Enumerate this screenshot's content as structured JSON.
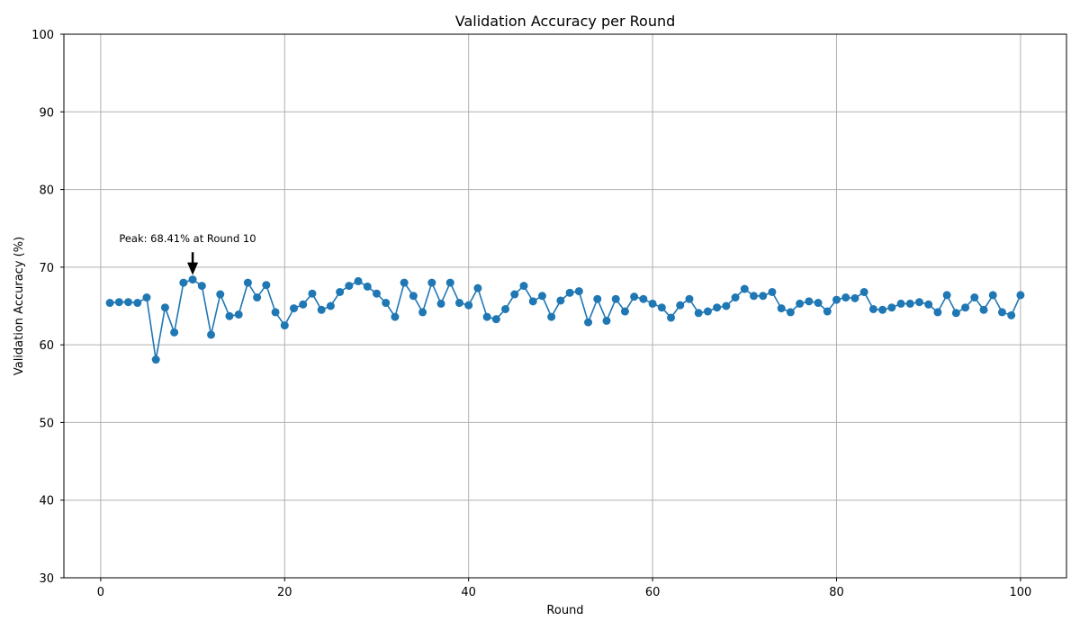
{
  "chart_data": {
    "type": "line",
    "title": "Validation Accuracy per Round",
    "xlabel": "Round",
    "ylabel": "Validation Accuracy (%)",
    "xlim": [
      -4,
      105
    ],
    "ylim": [
      30,
      100
    ],
    "xticks": [
      0,
      20,
      40,
      60,
      80,
      100
    ],
    "yticks": [
      30,
      40,
      50,
      60,
      70,
      80,
      90,
      100
    ],
    "xtick_labels": [
      "0",
      "20",
      "40",
      "60",
      "80",
      "100"
    ],
    "ytick_labels": [
      "30",
      "40",
      "50",
      "60",
      "70",
      "80",
      "90",
      "100"
    ],
    "grid": true,
    "series_color": "#1f77b4",
    "x": [
      1,
      2,
      3,
      4,
      5,
      6,
      7,
      8,
      9,
      10,
      11,
      12,
      13,
      14,
      15,
      16,
      17,
      18,
      19,
      20,
      21,
      22,
      23,
      24,
      25,
      26,
      27,
      28,
      29,
      30,
      31,
      32,
      33,
      34,
      35,
      36,
      37,
      38,
      39,
      40,
      41,
      42,
      43,
      44,
      45,
      46,
      47,
      48,
      49,
      50,
      51,
      52,
      53,
      54,
      55,
      56,
      57,
      58,
      59,
      60,
      61,
      62,
      63,
      64,
      65,
      66,
      67,
      68,
      69,
      70,
      71,
      72,
      73,
      74,
      75,
      76,
      77,
      78,
      79,
      80,
      81,
      82,
      83,
      84,
      85,
      86,
      87,
      88,
      89,
      90,
      91,
      92,
      93,
      94,
      95,
      96,
      97,
      98,
      99,
      100
    ],
    "y": [
      65.4,
      65.5,
      65.5,
      65.4,
      66.1,
      58.1,
      64.8,
      61.6,
      68.0,
      68.41,
      67.6,
      61.3,
      66.5,
      63.7,
      63.9,
      68.0,
      66.1,
      67.7,
      64.2,
      62.5,
      64.7,
      65.2,
      66.6,
      64.5,
      65.0,
      66.8,
      67.6,
      68.2,
      67.5,
      66.6,
      65.4,
      63.6,
      68.0,
      66.3,
      64.2,
      68.0,
      65.3,
      68.0,
      65.4,
      65.1,
      67.3,
      63.6,
      63.3,
      64.6,
      66.5,
      67.6,
      65.6,
      66.3,
      63.6,
      65.7,
      66.7,
      66.9,
      62.9,
      65.9,
      63.1,
      65.9,
      64.3,
      66.2,
      65.9,
      65.3,
      64.8,
      63.5,
      65.1,
      65.9,
      64.1,
      64.3,
      64.8,
      65.0,
      66.1,
      67.2,
      66.3,
      66.3,
      66.8,
      64.7,
      64.2,
      65.3,
      65.6,
      65.4,
      64.3,
      65.8,
      66.1,
      66.0,
      66.8,
      64.6,
      64.5,
      64.8,
      65.3,
      65.3,
      65.5,
      65.2,
      64.2,
      66.4,
      64.1,
      64.8,
      66.1,
      64.5,
      66.4,
      64.2,
      63.8,
      66.4
    ],
    "annotation": {
      "text": "Peak: 68.41% at Round 10",
      "x": 10,
      "y": 68.41,
      "text_x": 2,
      "text_y": 73.2
    }
  }
}
